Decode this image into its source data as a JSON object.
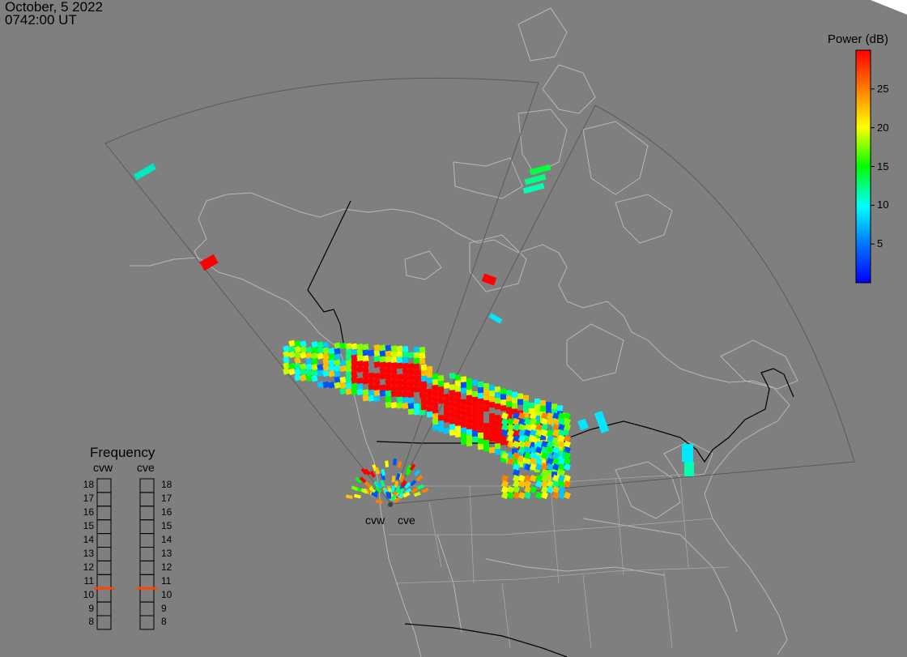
{
  "header": {
    "date": "October, 5 2022",
    "time": "0742:00 UT"
  },
  "colorbar": {
    "title": "Power (dB)",
    "ticks": [
      "25",
      "20",
      "15",
      "10",
      "5"
    ],
    "tick_values": [
      25,
      20,
      15,
      10,
      5
    ],
    "range": [
      0,
      30
    ],
    "colors": [
      "#0000ff",
      "#00ffff",
      "#00ff00",
      "#ffff00",
      "#ff0000"
    ]
  },
  "frequency_panel": {
    "title": "Frequency",
    "radars": [
      "cvw",
      "cve"
    ],
    "levels": [
      "18",
      "17",
      "16",
      "15",
      "14",
      "13",
      "12",
      "11",
      "10",
      "9",
      "8"
    ],
    "current_freq": {
      "cvw": 10.5,
      "cve": 10.5
    },
    "marker_color": "#ff4500"
  },
  "radar_labels": [
    "cvw",
    "cve"
  ],
  "colors": {
    "background": "#7f7f7f",
    "coast": "#b8b8b8",
    "border": "#000000",
    "fov": "#5a5a5a"
  }
}
